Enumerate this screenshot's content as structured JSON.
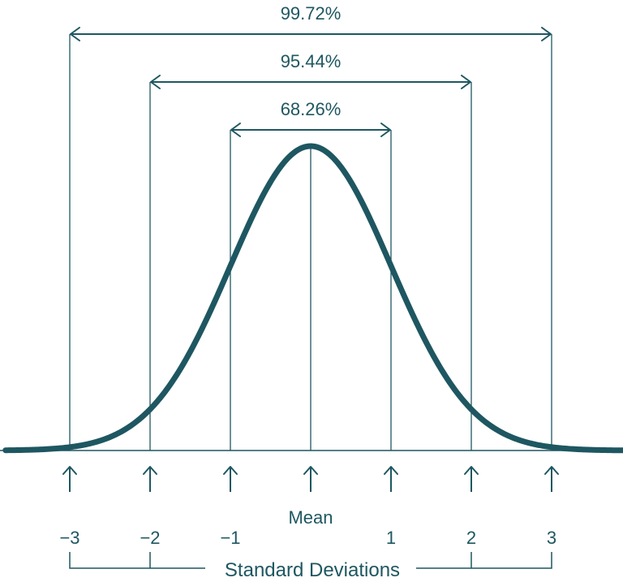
{
  "chart_data": {
    "type": "normal-distribution",
    "colors": {
      "primary": "#1e5761",
      "background": "#ffffff"
    },
    "intervals": [
      {
        "label": "68.26%",
        "from": -1,
        "to": 1
      },
      {
        "label": "95.44%",
        "from": -2,
        "to": 2
      },
      {
        "label": "99.72%",
        "from": -3,
        "to": 3
      }
    ],
    "ticks": [
      {
        "value": -3,
        "label": "−3"
      },
      {
        "value": -2,
        "label": "−2"
      },
      {
        "value": -1,
        "label": "−1"
      },
      {
        "value": 0,
        "label": ""
      },
      {
        "value": 1,
        "label": "1"
      },
      {
        "value": 2,
        "label": "2"
      },
      {
        "value": 3,
        "label": "3"
      }
    ],
    "mean_label": "Mean",
    "axis_label": "Standard Deviations",
    "x_range": [
      -3.8,
      3.9
    ]
  }
}
